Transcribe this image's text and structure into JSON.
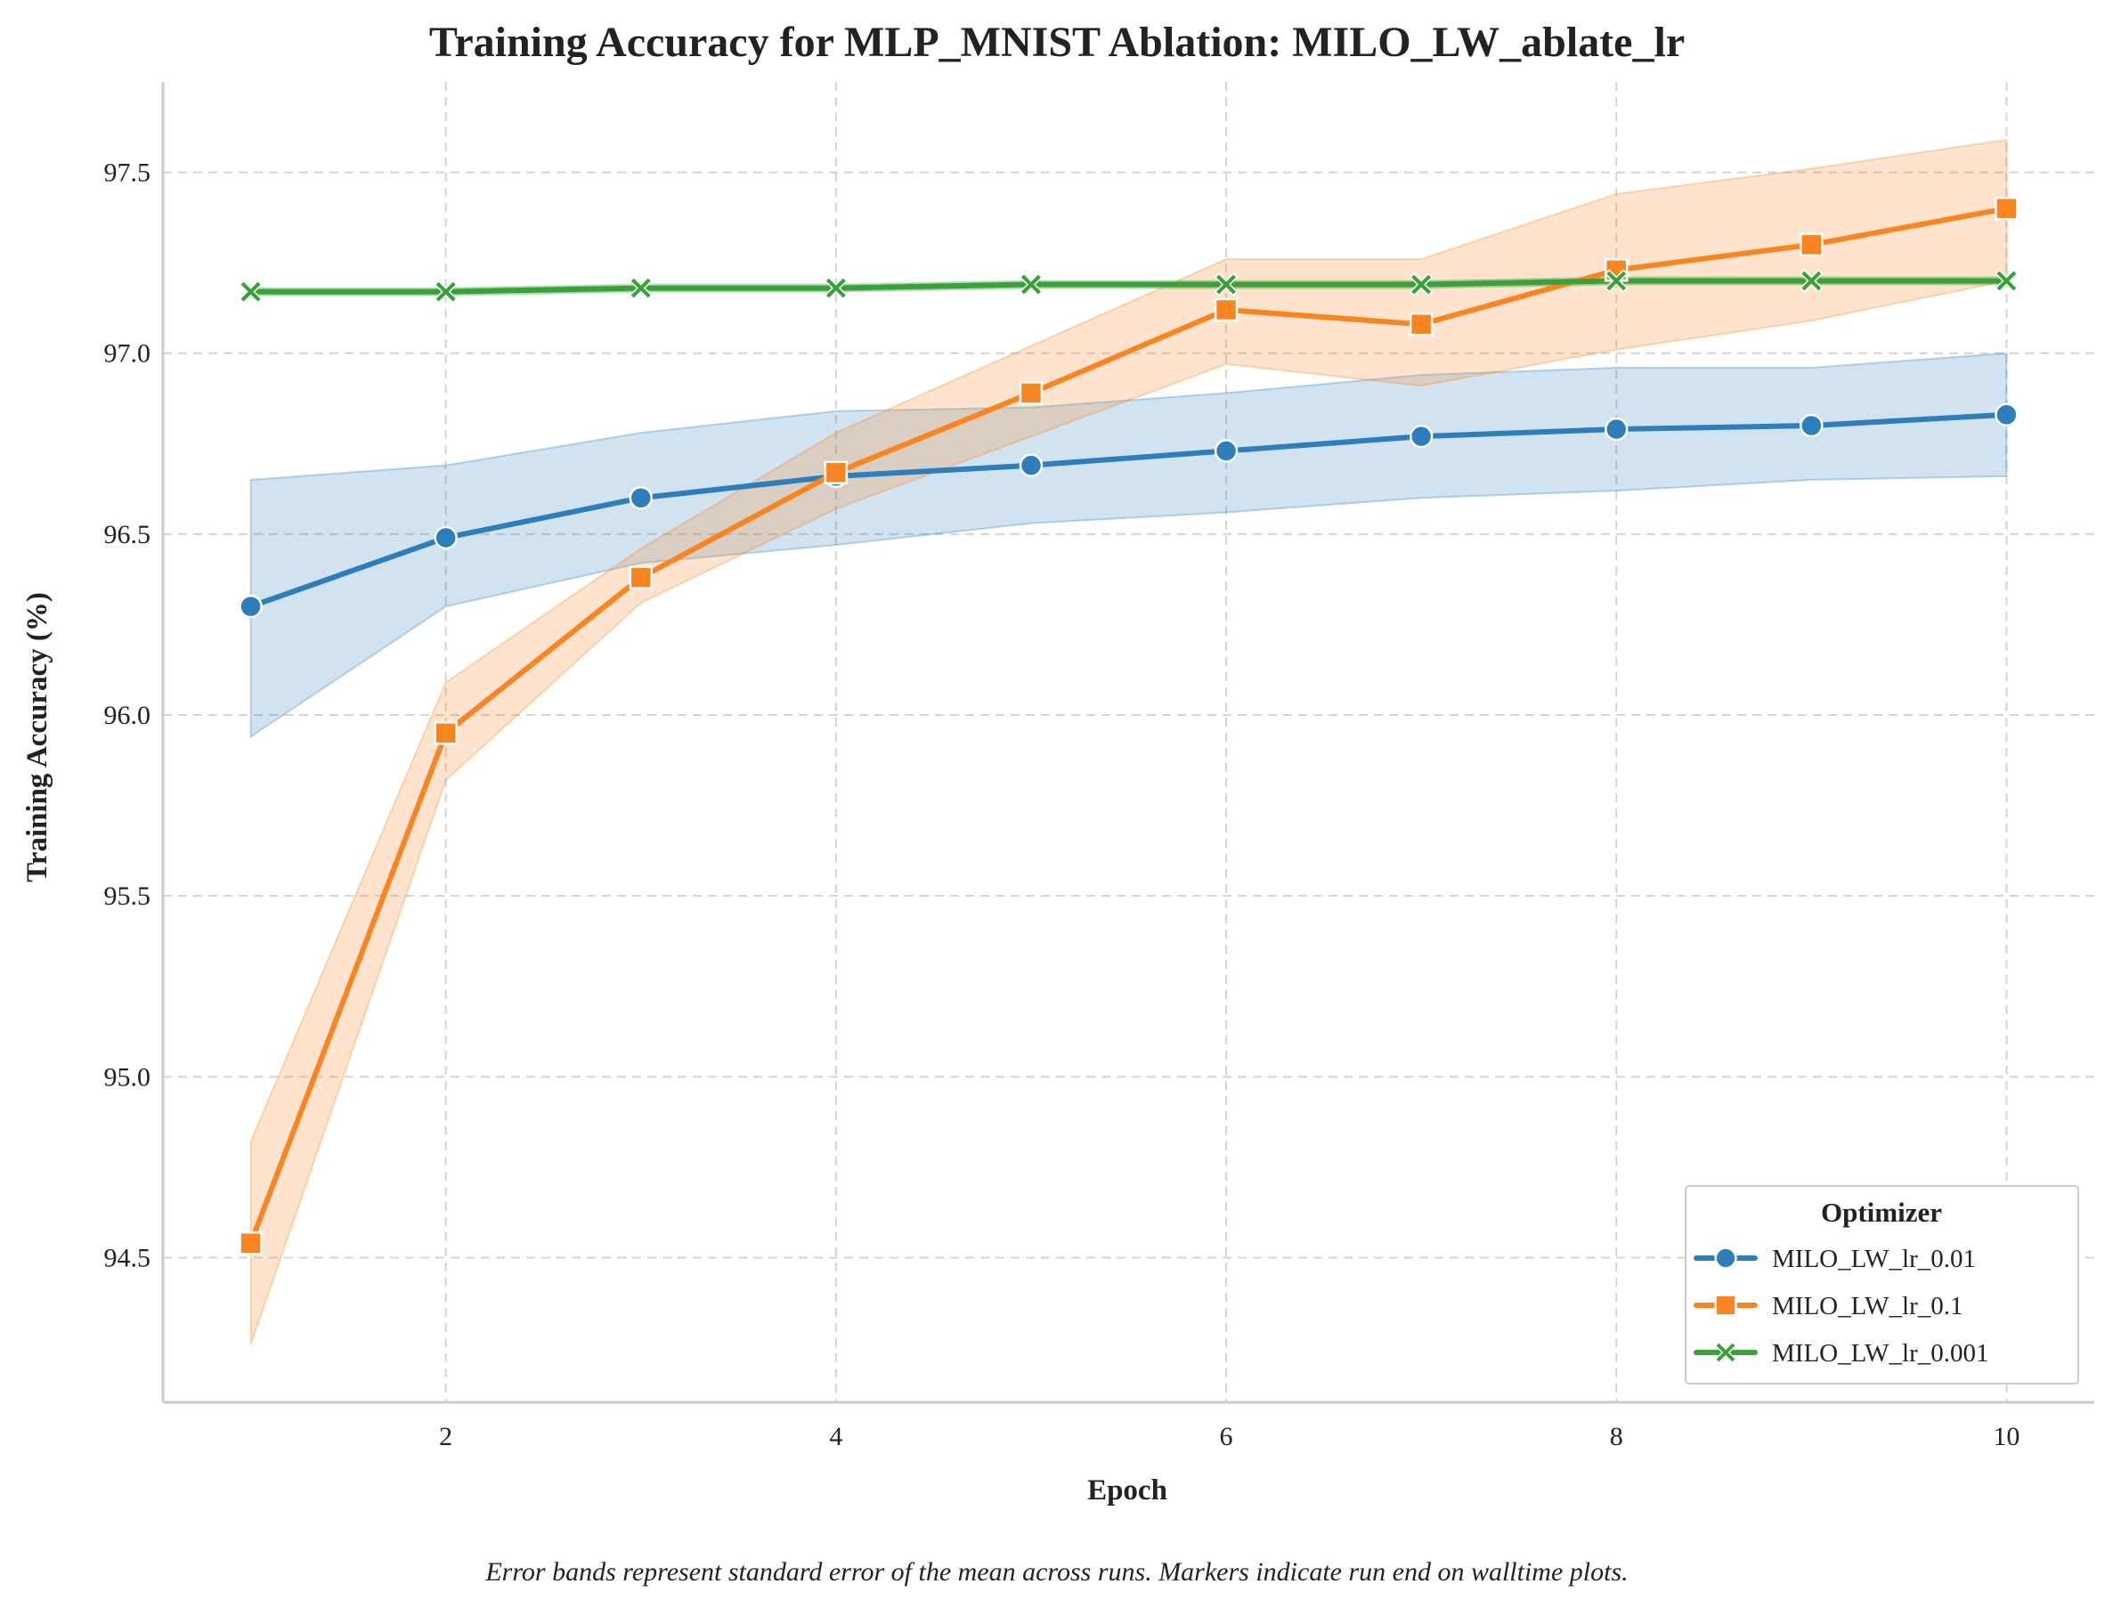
{
  "chart_data": {
    "type": "line",
    "title": "Training Accuracy for MLP_MNIST Ablation: MILO_LW_ablate_lr",
    "xlabel": "Epoch",
    "ylabel": "Training Accuracy (%)",
    "caption": "Error bands represent standard error of the mean across runs. Markers indicate run end on walltime plots.",
    "xlim": [
      0.55,
      10.45
    ],
    "ylim": [
      94.1,
      97.75
    ],
    "xticks": [
      2,
      4,
      6,
      8,
      10
    ],
    "yticks": [
      94.5,
      95.0,
      95.5,
      96.0,
      96.5,
      97.0,
      97.5
    ],
    "xtick_labels": [
      "2",
      "4",
      "6",
      "8",
      "10"
    ],
    "ytick_labels": [
      "94.5",
      "95.0",
      "95.5",
      "96.0",
      "96.5",
      "97.0",
      "97.5"
    ],
    "grid": true,
    "legend_title": "Optimizer",
    "legend_position": "lower right",
    "x": [
      1,
      2,
      3,
      4,
      5,
      6,
      7,
      8,
      9,
      10
    ],
    "series": [
      {
        "name": "MILO_LW_lr_0.01",
        "color": "#2e7ebc",
        "marker": "circle",
        "values": [
          96.3,
          96.49,
          96.6,
          96.66,
          96.69,
          96.73,
          96.77,
          96.79,
          96.8,
          96.83
        ],
        "lower": [
          95.94,
          96.3,
          96.42,
          96.47,
          96.53,
          96.56,
          96.6,
          96.62,
          96.65,
          96.66
        ],
        "upper": [
          96.65,
          96.69,
          96.78,
          96.84,
          96.85,
          96.89,
          96.94,
          96.96,
          96.96,
          97.0
        ]
      },
      {
        "name": "MILO_LW_lr_0.1",
        "color": "#f98522",
        "marker": "square",
        "values": [
          94.54,
          95.95,
          96.38,
          96.67,
          96.89,
          97.12,
          97.08,
          97.23,
          97.3,
          97.4
        ],
        "lower": [
          94.26,
          95.82,
          96.31,
          96.57,
          96.77,
          96.97,
          96.91,
          97.01,
          97.09,
          97.2
        ],
        "upper": [
          94.82,
          96.09,
          96.46,
          96.78,
          97.02,
          97.26,
          97.26,
          97.44,
          97.51,
          97.59
        ]
      },
      {
        "name": "MILO_LW_lr_0.001",
        "color": "#3aa03a",
        "marker": "x",
        "values": [
          97.17,
          97.17,
          97.18,
          97.18,
          97.19,
          97.19,
          97.19,
          97.2,
          97.2,
          97.2
        ],
        "lower": [
          97.16,
          97.16,
          97.17,
          97.17,
          97.18,
          97.18,
          97.18,
          97.19,
          97.19,
          97.19
        ],
        "upper": [
          97.18,
          97.18,
          97.19,
          97.19,
          97.2,
          97.2,
          97.2,
          97.21,
          97.21,
          97.21
        ]
      }
    ]
  }
}
